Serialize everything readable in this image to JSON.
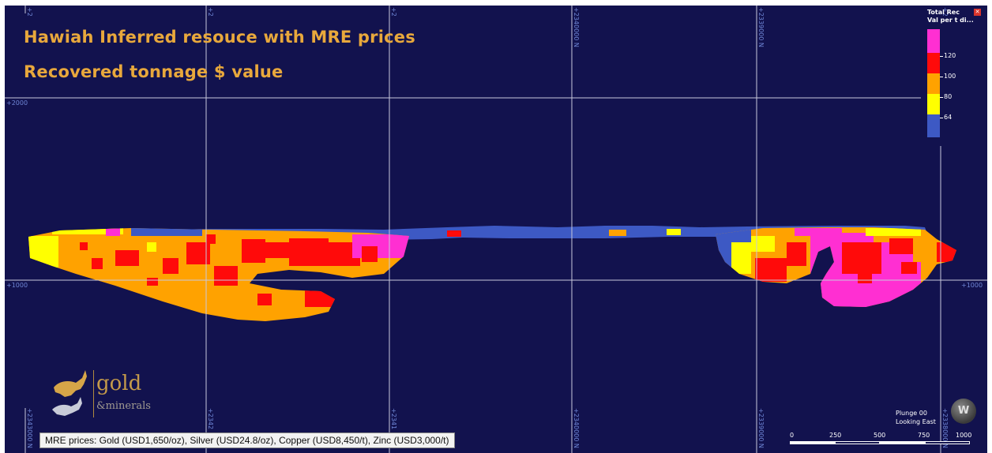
{
  "title": {
    "line1": "Hawiah Inferred resouce with MRE prices",
    "line2": "Recovered tonnage $ value"
  },
  "grid": {
    "top_labels": [
      "+2",
      "+2",
      "+2",
      "+2340000 N",
      "+2339000 N",
      "+2"
    ],
    "bottom_labels": [
      "+2343000 N",
      "+2342",
      "+2341",
      "+2340000 N",
      "+2339000 N",
      "+2338000 N"
    ],
    "elevation_labels": {
      "upper": "+2000",
      "lower": "+1000",
      "lower_right": "+1000"
    }
  },
  "legend": {
    "title_line1": "Total Rec",
    "title_line2": "Val per t di...",
    "close_icon": "close-icon",
    "classes": [
      {
        "color": "#ff2fd2",
        "label": ""
      },
      {
        "color": "#ff0a0a",
        "label": "120"
      },
      {
        "color": "#ffa200",
        "label": "100"
      },
      {
        "color": "#ffff00",
        "label": "80"
      },
      {
        "color": "#3d59c4",
        "label": "64"
      }
    ]
  },
  "logo": {
    "word1": "gold",
    "word2": "&minerals",
    "icon": "ibex-icon"
  },
  "caption": "MRE prices: Gold (USD1,650/oz), Silver (USD24.8/oz), Copper (USD8,450/t), Zinc (USD3,000/t)",
  "view": {
    "plunge": "Plunge 00",
    "looking": "Looking East",
    "compass_icon": "compass-icon",
    "compass_letter": "W"
  },
  "scale_bar": {
    "labels": [
      "0",
      "250",
      "500",
      "750",
      "1000"
    ]
  },
  "colors": {
    "background": "#12124e",
    "grid": "#c8c8dc",
    "title": "#e8a83c"
  }
}
